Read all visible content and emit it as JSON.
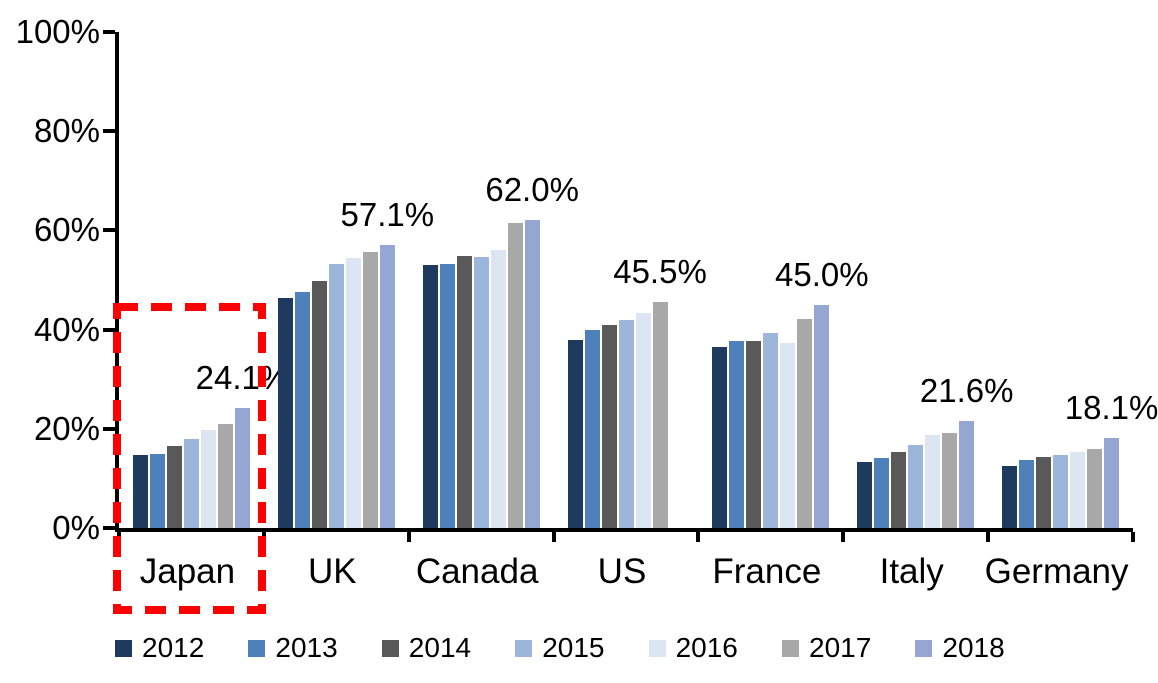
{
  "chart_data": {
    "type": "bar",
    "title": "",
    "xlabel": "",
    "ylabel": "",
    "categories": [
      "Japan",
      "UK",
      "Canada",
      "US",
      "France",
      "Italy",
      "Germany"
    ],
    "series": [
      {
        "name": "2012",
        "color": "#1F3A5F",
        "values": [
          14.8,
          46.3,
          53.0,
          38.0,
          36.5,
          13.4,
          12.4
        ]
      },
      {
        "name": "2013",
        "color": "#4E80BC",
        "values": [
          15.0,
          47.6,
          53.3,
          39.9,
          37.7,
          14.1,
          13.8
        ]
      },
      {
        "name": "2014",
        "color": "#595959",
        "values": [
          16.5,
          49.8,
          54.8,
          40.9,
          37.7,
          15.3,
          14.4
        ]
      },
      {
        "name": "2015",
        "color": "#9BB6DA",
        "values": [
          18.0,
          53.2,
          54.6,
          41.9,
          39.3,
          16.8,
          14.7
        ]
      },
      {
        "name": "2016",
        "color": "#DCE6F2",
        "values": [
          19.8,
          54.5,
          56.0,
          43.4,
          37.3,
          18.8,
          15.3
        ]
      },
      {
        "name": "2017",
        "color": "#A8A8A8",
        "values": [
          21.0,
          55.6,
          61.5,
          45.5,
          42.2,
          19.2,
          16.0
        ]
      },
      {
        "name": "2018",
        "color": "#95A6D2",
        "values": [
          24.1,
          57.1,
          62.0,
          null,
          45.0,
          21.6,
          18.1
        ]
      }
    ],
    "callouts": [
      "24.1%",
      "57.1%",
      "62.0%",
      "45.5%",
      "45.0%",
      "21.6%",
      "18.1%"
    ],
    "y_ticks": [
      "0%",
      "20%",
      "40%",
      "60%",
      "80%",
      "100%"
    ],
    "ylim": [
      0,
      100
    ],
    "grid": false,
    "legend_position": "bottom",
    "legend_labels": [
      "2012",
      "2013",
      "2014",
      "2015",
      "2016",
      "2017",
      "2018"
    ],
    "highlight": {
      "category": "Japan",
      "color": "#FF0000",
      "style": "dashed"
    }
  }
}
